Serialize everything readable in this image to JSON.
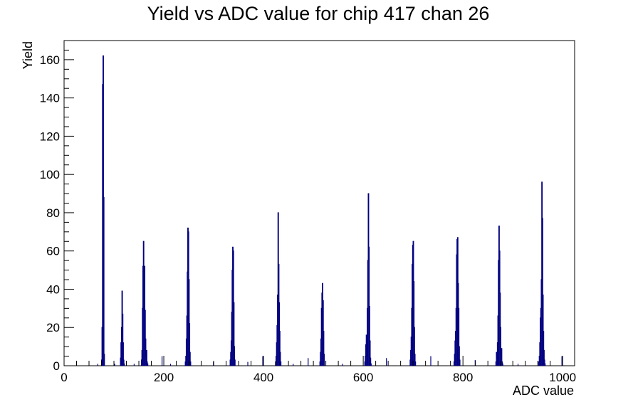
{
  "chart_data": {
    "type": "bar",
    "title": "Yield vs ADC value for chip 417 chan 26",
    "xlabel": "ADC value",
    "ylabel": "Yield",
    "xlim": [
      0,
      1024
    ],
    "ylim": [
      0,
      170
    ],
    "xticks": [
      "0",
      "200",
      "400",
      "600",
      "800",
      "1000"
    ],
    "yticks": [
      "0",
      "20",
      "40",
      "60",
      "80",
      "100",
      "120",
      "140",
      "160"
    ],
    "series": [
      {
        "color": "#000080",
        "bin_width": 1,
        "peaks": [
          {
            "x": [
              75,
              76,
              77,
              78,
              79,
              80
            ],
            "values": [
              3,
              20,
              147,
              162,
              88,
              6
            ]
          },
          {
            "x": [
              113,
              114,
              115,
              116,
              117,
              118,
              119,
              120
            ],
            "values": [
              4,
              12,
              20,
              39,
              27,
              12,
              3,
              1
            ]
          },
          {
            "x": [
              155,
              156,
              157,
              158,
              159,
              160,
              161,
              162,
              163,
              164,
              165,
              166,
              167
            ],
            "values": [
              3,
              8,
              30,
              52,
              65,
              51,
              52,
              29,
              14,
              5,
              8,
              2,
              1
            ]
          },
          {
            "x": [
              243,
              244,
              245,
              246,
              247,
              248,
              249,
              250,
              251,
              252,
              253
            ],
            "values": [
              2,
              5,
              14,
              26,
              49,
              72,
              70,
              45,
              22,
              7,
              2
            ]
          },
          {
            "x": [
              333,
              334,
              335,
              336,
              337,
              338,
              339,
              340,
              341,
              342
            ],
            "values": [
              3,
              7,
              13,
              28,
              50,
              62,
              60,
              33,
              10,
              3
            ]
          },
          {
            "x": [
              424,
              425,
              426,
              427,
              428,
              429,
              430,
              431,
              432,
              433,
              434
            ],
            "values": [
              2,
              5,
              12,
              21,
              37,
              80,
              53,
              33,
              18,
              7,
              2
            ]
          },
          {
            "x": [
              513,
              514,
              515,
              516,
              517,
              518,
              519,
              520,
              521
            ],
            "values": [
              2,
              7,
              14,
              30,
              38,
              43,
              34,
              18,
              6
            ]
          },
          {
            "x": [
              603,
              604,
              605,
              606,
              607,
              608,
              609,
              610,
              611,
              612,
              613,
              614,
              615
            ],
            "values": [
              2,
              5,
              11,
              16,
              5,
              30,
              55,
              90,
              62,
              31,
              13,
              4,
              1
            ]
          },
          {
            "x": [
              694,
              695,
              696,
              697,
              698,
              699,
              700,
              701,
              702,
              703,
              704
            ],
            "values": [
              3,
              8,
              15,
              30,
              53,
              63,
              65,
              44,
              20,
              6,
              2
            ]
          },
          {
            "x": [
              782,
              783,
              784,
              785,
              786,
              787,
              788,
              789,
              790,
              791,
              792,
              793
            ],
            "values": [
              2,
              6,
              13,
              18,
              30,
              58,
              66,
              67,
              43,
              30,
              10,
              3
            ]
          },
          {
            "x": [
              866,
              867,
              868,
              869,
              870,
              871,
              872,
              873,
              874,
              875,
              876,
              877,
              878,
              879
            ],
            "values": [
              2,
              7,
              4,
              12,
              26,
              55,
              73,
              60,
              38,
              20,
              6,
              9,
              2,
              1
            ]
          },
          {
            "x": [
              952,
              953,
              954,
              955,
              956,
              957,
              958,
              959,
              960,
              961,
              962,
              963,
              964
            ],
            "values": [
              2,
              5,
              12,
              25,
              30,
              45,
              96,
              77,
              37,
              18,
              8,
              3,
              1
            ]
          }
        ],
        "isolated": [
          {
            "x": 67,
            "value": 1
          },
          {
            "x": 101,
            "value": 1
          },
          {
            "x": 140,
            "value": 1
          },
          {
            "x": 196,
            "value": 5
          },
          {
            "x": 213,
            "value": 1
          },
          {
            "x": 299,
            "value": 2
          },
          {
            "x": 368,
            "value": 2
          },
          {
            "x": 398,
            "value": 5
          },
          {
            "x": 459,
            "value": 1
          },
          {
            "x": 489,
            "value": 4
          },
          {
            "x": 558,
            "value": 1
          },
          {
            "x": 646,
            "value": 4
          },
          {
            "x": 735,
            "value": 5
          },
          {
            "x": 824,
            "value": 3
          },
          {
            "x": 910,
            "value": 1
          },
          {
            "x": 998,
            "value": 5
          }
        ]
      }
    ]
  }
}
